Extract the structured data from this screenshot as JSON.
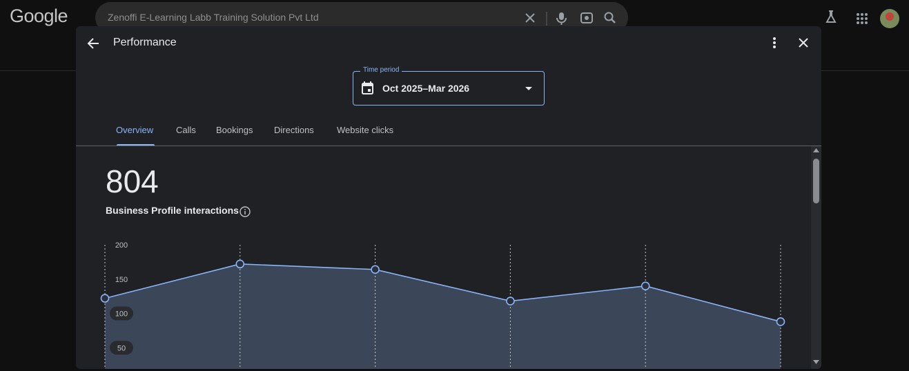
{
  "header": {
    "logo": "Google",
    "search_query": "Zenoffi E-Learning Labb Training Solution Pvt Ltd"
  },
  "dialog": {
    "title": "Performance",
    "time_period_label": "Time period",
    "time_period_value": "Oct 2025–Mar 2026",
    "tabs": [
      "Overview",
      "Calls",
      "Bookings",
      "Directions",
      "Website clicks"
    ],
    "total": 804,
    "total_label": "Business Profile interactions"
  },
  "chart_data": {
    "type": "area",
    "categories": [
      null,
      null,
      null,
      null,
      null,
      null
    ],
    "values": [
      122,
      172,
      164,
      118,
      140,
      88
    ],
    "color": "#8ab4f8",
    "fill": "#3b4658",
    "ylim": [
      0,
      200
    ],
    "yticks": [
      50,
      100,
      150,
      200
    ]
  }
}
